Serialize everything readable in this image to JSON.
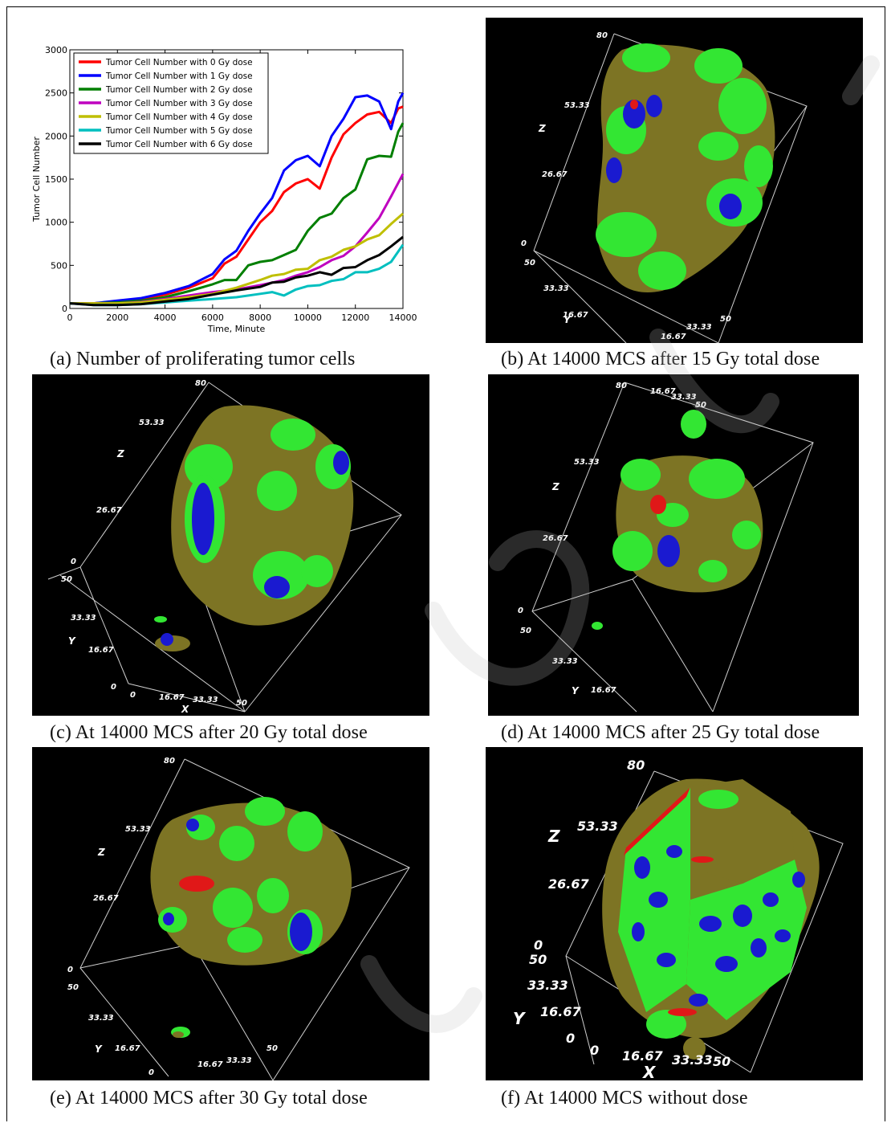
{
  "captions": {
    "a": "(a)  Number of proliferating tumor cells",
    "b": "(b)  At 14000 MCS after 15 Gy total dose",
    "c": "(c)  At 14000 MCS after 20 Gy total dose",
    "d": "(d)  At 14000 MCS after 25 Gy total dose",
    "e": "(e)  At 14000 MCS after 30 Gy total dose",
    "f": "(f)  At 14000 MCS without dose"
  },
  "axis3d": {
    "z_ticks": [
      "80",
      "53.33",
      "26.67",
      "0"
    ],
    "y_ticks": [
      "50",
      "33.33",
      "16.67",
      "0"
    ],
    "x_ticks": [
      "0",
      "16.67",
      "33.33",
      "50"
    ],
    "z_label": "Z",
    "y_label": "Y",
    "x_label": "X"
  },
  "colors": {
    "tumor_green": "#33e633",
    "necrotic_olive": "#7d7424",
    "blue_region": "#1a1ad0",
    "red_region": "#e01818"
  },
  "chart_data": {
    "type": "line",
    "xlabel": "Time, Minute",
    "ylabel": "Tumor Cell Number",
    "xlim": [
      0,
      14000
    ],
    "ylim": [
      0,
      3000
    ],
    "xticks": [
      0,
      2000,
      4000,
      6000,
      8000,
      10000,
      12000,
      14000
    ],
    "yticks": [
      0,
      500,
      1000,
      1500,
      2000,
      2500,
      3000
    ],
    "grid": false,
    "legend_position": "top-left",
    "series": [
      {
        "name": "Tumor Cell Number with 0 Gy dose",
        "color": "#ff0000",
        "x": [
          0,
          1000,
          2000,
          3000,
          4000,
          5000,
          6000,
          6500,
          7000,
          7500,
          8000,
          8500,
          9000,
          9500,
          10000,
          10500,
          11000,
          11500,
          12000,
          12500,
          13000,
          13500,
          13800,
          14000
        ],
        "y": [
          60,
          60,
          80,
          110,
          160,
          240,
          350,
          520,
          600,
          800,
          1000,
          1130,
          1350,
          1450,
          1500,
          1390,
          1750,
          2020,
          2150,
          2250,
          2280,
          2150,
          2320,
          2340
        ]
      },
      {
        "name": "Tumor Cell Number with 1 Gy dose",
        "color": "#0000ff",
        "x": [
          0,
          1000,
          2000,
          3000,
          4000,
          5000,
          6000,
          6500,
          7000,
          7500,
          8000,
          8500,
          9000,
          9500,
          10000,
          10500,
          11000,
          11500,
          12000,
          12500,
          13000,
          13500,
          13800,
          14000
        ],
        "y": [
          60,
          60,
          90,
          120,
          180,
          260,
          400,
          570,
          670,
          900,
          1100,
          1280,
          1600,
          1720,
          1770,
          1650,
          2000,
          2200,
          2450,
          2470,
          2400,
          2080,
          2400,
          2500
        ]
      },
      {
        "name": "Tumor Cell Number with 2 Gy dose",
        "color": "#007f00",
        "x": [
          0,
          1000,
          2000,
          3000,
          4000,
          5000,
          6000,
          6500,
          7000,
          7500,
          8000,
          8500,
          9000,
          9500,
          10000,
          10500,
          11000,
          11500,
          12000,
          12500,
          13000,
          13500,
          13800,
          14000
        ],
        "y": [
          60,
          60,
          70,
          90,
          130,
          200,
          280,
          330,
          330,
          500,
          540,
          560,
          620,
          680,
          900,
          1050,
          1100,
          1280,
          1380,
          1730,
          1770,
          1760,
          2050,
          2150
        ]
      },
      {
        "name": "Tumor Cell Number with 3 Gy dose",
        "color": "#bf00bf",
        "x": [
          0,
          1000,
          2000,
          3000,
          4000,
          5000,
          6000,
          7000,
          8000,
          8500,
          9000,
          9500,
          10000,
          10500,
          11000,
          11500,
          12000,
          12500,
          13000,
          13500,
          14000
        ],
        "y": [
          60,
          60,
          60,
          75,
          110,
          150,
          190,
          220,
          270,
          300,
          330,
          380,
          420,
          480,
          560,
          610,
          720,
          880,
          1050,
          1300,
          1560
        ]
      },
      {
        "name": "Tumor Cell Number with 4 Gy dose",
        "color": "#bfbf00",
        "x": [
          0,
          1000,
          2000,
          3000,
          4000,
          5000,
          6000,
          7000,
          8000,
          8500,
          9000,
          9500,
          10000,
          10500,
          11000,
          11500,
          12000,
          12500,
          13000,
          13500,
          14000
        ],
        "y": [
          60,
          60,
          60,
          70,
          100,
          130,
          170,
          240,
          330,
          380,
          400,
          450,
          460,
          560,
          600,
          680,
          720,
          800,
          850,
          980,
          1100
        ]
      },
      {
        "name": "Tumor Cell Number with 5 Gy dose",
        "color": "#00bfbf",
        "x": [
          0,
          1000,
          2000,
          3000,
          4000,
          5000,
          6000,
          7000,
          8000,
          8500,
          9000,
          9500,
          10000,
          10500,
          11000,
          11500,
          12000,
          12500,
          13000,
          13500,
          14000
        ],
        "y": [
          60,
          40,
          40,
          50,
          70,
          90,
          110,
          130,
          170,
          190,
          150,
          220,
          260,
          270,
          320,
          340,
          420,
          420,
          460,
          540,
          740
        ]
      },
      {
        "name": "Tumor Cell Number with 6 Gy dose",
        "color": "#000000",
        "x": [
          0,
          1000,
          2000,
          3000,
          4000,
          5000,
          6000,
          7000,
          8000,
          8500,
          9000,
          9500,
          10000,
          10500,
          11000,
          11500,
          12000,
          12500,
          13000,
          13500,
          14000
        ],
        "y": [
          60,
          40,
          40,
          50,
          80,
          110,
          160,
          210,
          250,
          300,
          310,
          360,
          380,
          420,
          390,
          470,
          480,
          560,
          620,
          720,
          830
        ]
      }
    ]
  }
}
